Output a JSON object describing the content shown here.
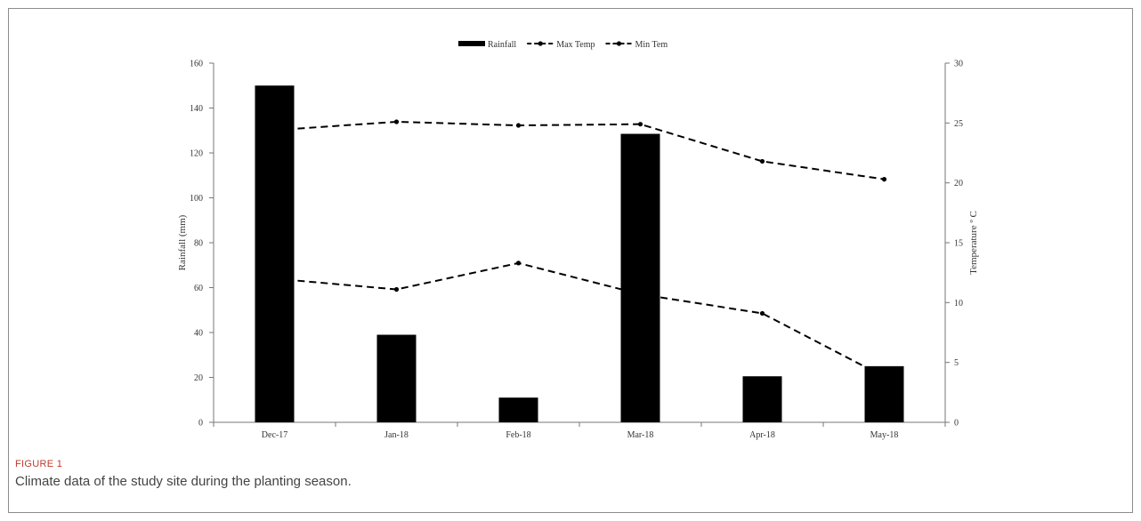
{
  "figure": {
    "label": "FIGURE 1",
    "caption": "Climate data of the study site during the planting season.",
    "label_color": "#c0392b"
  },
  "chart_data": {
    "type": "bar",
    "categories": [
      "Dec-17",
      "Jan-18",
      "Feb-18",
      "Mar-18",
      "Apr-18",
      "May-18"
    ],
    "ylabel": "Rainfall (mm)",
    "y2label": "Temperature º C",
    "ylim": [
      0,
      160
    ],
    "y2lim": [
      0,
      30
    ],
    "yticks": [
      0,
      20,
      40,
      60,
      80,
      100,
      120,
      140,
      160
    ],
    "y2ticks": [
      0,
      5,
      10,
      15,
      20,
      25,
      30
    ],
    "grid": false,
    "legend_position": "top-center",
    "series": [
      {
        "name": "Rainfall",
        "type": "bar",
        "axis": "left",
        "color": "#000000",
        "values": [
          150,
          39,
          11,
          128.5,
          20.5,
          25
        ]
      },
      {
        "name": "Max Temp",
        "type": "line",
        "axis": "right",
        "style": "dashed",
        "marker": "dot",
        "color": "#000000",
        "values": [
          24.4,
          25.1,
          24.8,
          24.9,
          21.8,
          20.3
        ]
      },
      {
        "name": "Min Tem",
        "type": "line",
        "axis": "right",
        "style": "dashed",
        "marker": "dot",
        "color": "#000000",
        "values": [
          12.0,
          11.1,
          13.3,
          10.7,
          9.1,
          3.8
        ]
      }
    ]
  }
}
